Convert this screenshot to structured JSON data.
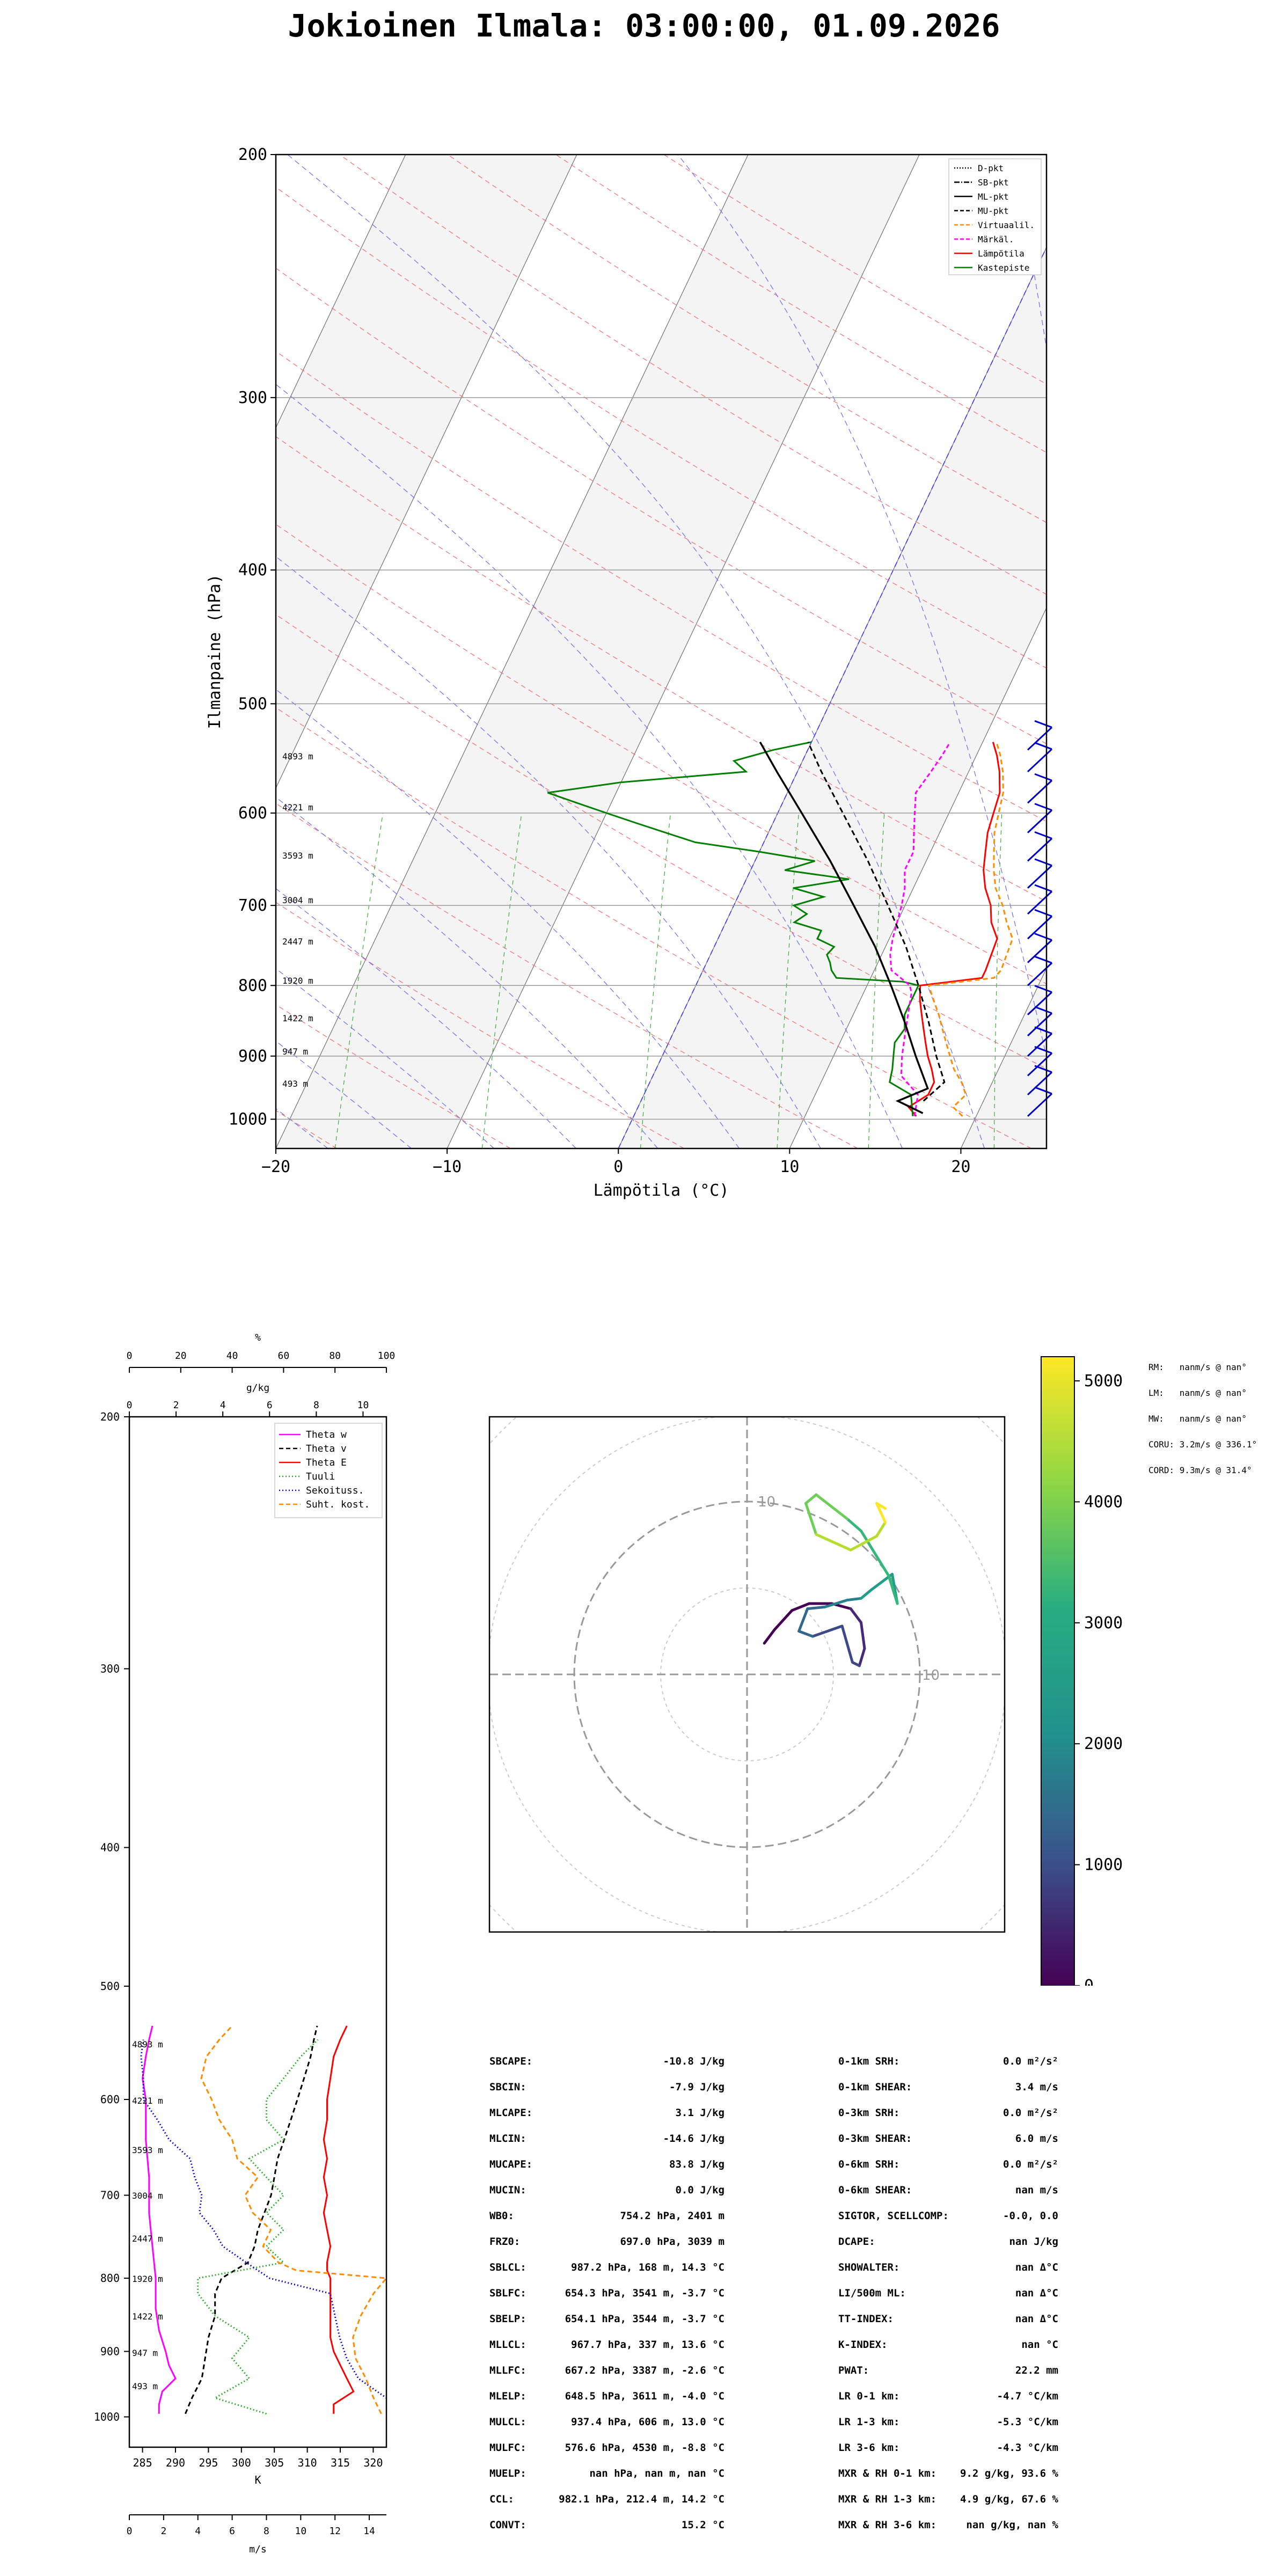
{
  "title": "Jokioinen Ilmala: 03:00:00, 01.09.2026",
  "skewt": {
    "ylabel": "Ilmanpaine (hPa)",
    "xlabel": "Lämpötila (°C)",
    "pressure_ticks": [
      "200",
      "300",
      "400",
      "500",
      "600",
      "700",
      "800",
      "900",
      "1000"
    ],
    "temp_ticks": [
      "−20",
      "−10",
      "0",
      "10",
      "20"
    ],
    "height_labels": [
      "4893 m",
      "4221 m",
      "3593 m",
      "3004 m",
      "2447 m",
      "1920 m",
      "1422 m",
      "947 m",
      "493 m"
    ],
    "legend": [
      "D-pkt",
      "SB-pkt",
      "ML-pkt",
      "MU-pkt",
      "Virtuaalil.",
      "Märkäl.",
      "Lämpötila",
      "Kastepiste"
    ],
    "colors": {
      "temperature": "#ff0000",
      "dewpoint": "#008000",
      "wetbulb": "#ff00ff",
      "virtual": "#ff8c00",
      "barbs": "#0000cd"
    }
  },
  "profile": {
    "top_label": "%",
    "top_ticks": [
      "0",
      "20",
      "40",
      "60",
      "80",
      "100"
    ],
    "mid_label": "g/kg",
    "mid_ticks": [
      "0",
      "2",
      "4",
      "6",
      "8",
      "10"
    ],
    "pressure_ticks": [
      "200",
      "300",
      "400",
      "500",
      "600",
      "700",
      "800",
      "900",
      "1000"
    ],
    "height_labels": [
      "4893 m",
      "4221 m",
      "3593 m",
      "3004 m",
      "2447 m",
      "1920 m",
      "1422 m",
      "947 m",
      "493 m"
    ],
    "k_label": "K",
    "k_ticks": [
      "285",
      "290",
      "295",
      "300",
      "305",
      "310",
      "315",
      "320"
    ],
    "ms_label": "m/s",
    "ms_ticks": [
      "0",
      "2",
      "4",
      "6",
      "8",
      "10",
      "12",
      "14"
    ],
    "legend": [
      "Theta w",
      "Theta v",
      "Theta E",
      "Tuuli",
      "Sekoituss.",
      "Suht. kost."
    ]
  },
  "hodograph": {
    "ring_labels": [
      "10",
      "10"
    ],
    "colorbar_ticks": [
      "5000",
      "4000",
      "3000",
      "2000",
      "1000",
      "0"
    ],
    "motion": [
      "RM:   nanm/s @ nan°",
      "LM:   nanm/s @ nan°",
      "MW:   nanm/s @ nan°",
      "CORU: 3.2m/s @ 336.1°",
      "CORD: 9.3m/s @ 31.4°"
    ]
  },
  "indices_left": [
    [
      "SBCAPE:",
      "-10.8 J/kg"
    ],
    [
      "SBCIN:",
      "-7.9 J/kg"
    ],
    [
      "MLCAPE:",
      "3.1 J/kg"
    ],
    [
      "MLCIN:",
      "-14.6 J/kg"
    ],
    [
      "MUCAPE:",
      "83.8 J/kg"
    ],
    [
      "MUCIN:",
      "0.0 J/kg"
    ],
    [
      "WB0:",
      "754.2 hPa, 2401 m"
    ],
    [
      "FRZ0:",
      "697.0 hPa, 3039 m"
    ],
    [
      "SBLCL:",
      "987.2 hPa, 168 m, 14.3 °C"
    ],
    [
      "SBLFC:",
      "654.3 hPa, 3541 m, -3.7 °C"
    ],
    [
      "SBELP:",
      "654.1 hPa, 3544 m, -3.7 °C"
    ],
    [
      "MLLCL:",
      "967.7 hPa, 337 m, 13.6 °C"
    ],
    [
      "MLLFC:",
      "667.2 hPa, 3387 m, -2.6 °C"
    ],
    [
      "MLELP:",
      "648.5 hPa, 3611 m, -4.0 °C"
    ],
    [
      "MULCL:",
      "937.4 hPa, 606 m, 13.0 °C"
    ],
    [
      "MULFC:",
      "576.6 hPa, 4530 m, -8.8 °C"
    ],
    [
      "MUELP:",
      "nan hPa, nan m, nan °C"
    ],
    [
      "CCL:",
      "982.1 hPa, 212.4 m, 14.2 °C"
    ],
    [
      "CONVT:",
      "15.2 °C"
    ]
  ],
  "indices_right": [
    [
      "0-1km SRH:",
      "0.0 m²/s²"
    ],
    [
      "0-1km SHEAR:",
      "3.4 m/s"
    ],
    [
      "0-3km SRH:",
      "0.0 m²/s²"
    ],
    [
      "0-3km SHEAR:",
      "6.0 m/s"
    ],
    [
      "0-6km SRH:",
      "0.0 m²/s²"
    ],
    [
      "0-6km SHEAR:",
      "nan m/s"
    ],
    [
      "SIGTOR, SCELLCOMP:",
      "-0.0, 0.0"
    ],
    [
      "DCAPE:",
      "nan J/kg"
    ],
    [
      "SHOWALTER:",
      "nan Δ°C"
    ],
    [
      "LI/500m ML:",
      "nan Δ°C"
    ],
    [
      "TT-INDEX:",
      "nan Δ°C"
    ],
    [
      "K-INDEX:",
      "nan °C"
    ],
    [
      "PWAT:",
      "22.2 mm"
    ],
    [
      "LR 0-1 km:",
      "-4.7 °C/km"
    ],
    [
      "LR 1-3 km:",
      "-5.3 °C/km"
    ],
    [
      "LR 3-6 km:",
      "-4.3 °C/km"
    ],
    [
      "MXR & RH 0-1 km:",
      "9.2 g/kg, 93.6 %"
    ],
    [
      "MXR & RH 1-3 km:",
      "4.9 g/kg, 67.6 %"
    ],
    [
      "MXR & RH 3-6 km:",
      "nan g/kg, nan %"
    ]
  ],
  "chart_data": [
    {
      "type": "line",
      "title": "Jokioinen Ilmala: 03:00:00, 01.09.2026",
      "xlabel": "Lämpötila (°C)",
      "ylabel": "Ilmanpaine (hPa)",
      "xlim": [
        -20,
        25
      ],
      "ylim": [
        1050,
        200
      ],
      "yscale": "log",
      "series": [
        {
          "name": "Lämpötila",
          "p": [
            995,
            980,
            960,
            940,
            920,
            900,
            880,
            860,
            840,
            820,
            800,
            790,
            780,
            760,
            740,
            720,
            700,
            680,
            660,
            640,
            620,
            600,
            580,
            560,
            545,
            533
          ],
          "t": [
            16.5,
            15.8,
            16.6,
            16.6,
            16.1,
            15.5,
            15.0,
            14.5,
            14.0,
            13.5,
            13.1,
            16.5,
            16.5,
            16.4,
            16.3,
            15.5,
            15.0,
            14.2,
            13.6,
            13.2,
            12.8,
            12.6,
            12.4,
            11.8,
            11.2,
            10.6
          ]
        },
        {
          "name": "Kastepiste",
          "p": [
            995,
            980,
            960,
            940,
            920,
            900,
            880,
            860,
            840,
            820,
            800,
            795,
            790,
            780,
            770,
            760,
            750,
            740,
            730,
            720,
            710,
            700,
            690,
            680,
            670,
            660,
            650,
            640,
            630,
            620,
            610,
            600,
            590,
            580,
            570,
            560,
            550,
            540,
            533
          ],
          "t": [
            16.3,
            16.0,
            15.6,
            14.0,
            13.8,
            13.5,
            13.2,
            13.4,
            13.0,
            13.0,
            13.0,
            12.0,
            8.0,
            7.5,
            7.2,
            6.8,
            7.0,
            5.8,
            5.8,
            4.0,
            4.5,
            3.5,
            5.0,
            3.0,
            6.0,
            2.0,
            3.5,
            0.0,
            -4.0,
            -6.0,
            -8.0,
            -10.0,
            -12.0,
            -14.0,
            -10.0,
            -3.0,
            -4.0,
            -2.0,
            0.0
          ]
        },
        {
          "name": "Märkäl.",
          "p": [
            995,
            960,
            930,
            900,
            870,
            840,
            810,
            800,
            780,
            760,
            740,
            720,
            700,
            680,
            660,
            640,
            620,
            600,
            580,
            560,
            545,
            533
          ],
          "t": [
            16.4,
            16.0,
            14.5,
            14.0,
            13.6,
            13.2,
            12.8,
            12.5,
            11.0,
            10.5,
            10.2,
            10.0,
            9.8,
            9.5,
            9.0,
            9.0,
            8.5,
            8.0,
            7.5,
            7.8,
            8.0,
            8.1
          ]
        },
        {
          "name": "Virtuaalil.",
          "p": [
            995,
            980,
            960,
            940,
            920,
            900,
            880,
            860,
            840,
            820,
            800,
            790,
            780,
            760,
            740,
            720,
            700,
            680,
            660,
            640,
            620,
            600,
            580,
            560,
            545,
            533
          ],
          "t": [
            19.2,
            18.4,
            18.8,
            18.2,
            17.4,
            16.8,
            16.2,
            15.6,
            15.0,
            14.3,
            13.6,
            17.2,
            17.4,
            17.3,
            17.2,
            16.4,
            15.7,
            14.8,
            14.2,
            13.7,
            13.2,
            12.9,
            12.6,
            12.0,
            11.4,
            10.8
          ]
        },
        {
          "name": "ML-pkt",
          "p": [
            990,
            970,
            950,
            900,
            850,
            800,
            750,
            700,
            650,
            600,
            560,
            533
          ],
          "t": [
            16.8,
            15.0,
            16.4,
            14.8,
            13.2,
            11.4,
            9.4,
            7.0,
            4.4,
            1.4,
            -1.2,
            -3.0
          ]
        },
        {
          "name": "MU-pkt",
          "p": [
            970,
            940,
            900,
            850,
            800,
            750,
            700,
            650,
            600,
            560,
            533
          ],
          "t": [
            16.5,
            17.2,
            16.0,
            14.6,
            13.0,
            11.2,
            9.0,
            6.6,
            3.8,
            1.4,
            -0.2
          ]
        }
      ],
      "wind_barbs": [
        {
          "p": 995,
          "speed_kt": 5
        },
        {
          "p": 960,
          "speed_kt": 5
        },
        {
          "p": 930,
          "speed_kt": 10
        },
        {
          "p": 900,
          "speed_kt": 10
        },
        {
          "p": 870,
          "speed_kt": 10
        },
        {
          "p": 840,
          "speed_kt": 10
        },
        {
          "p": 800,
          "speed_kt": 10
        },
        {
          "p": 770,
          "speed_kt": 10
        },
        {
          "p": 740,
          "speed_kt": 10
        },
        {
          "p": 710,
          "speed_kt": 10
        },
        {
          "p": 680,
          "speed_kt": 10
        },
        {
          "p": 650,
          "speed_kt": 10
        },
        {
          "p": 620,
          "speed_kt": 10
        },
        {
          "p": 590,
          "speed_kt": 10
        },
        {
          "p": 560,
          "speed_kt": 10
        },
        {
          "p": 540,
          "speed_kt": 10
        }
      ]
    },
    {
      "type": "line",
      "xlabel": "K",
      "ylim": [
        1050,
        200
      ],
      "yscale": "log",
      "xlim_K": [
        283,
        322
      ],
      "xlim_ms": [
        0,
        15
      ],
      "xlim_gkg": [
        0,
        11
      ],
      "xlim_pct": [
        0,
        100
      ],
      "series": [
        {
          "name": "Theta w",
          "unit": "K",
          "p": [
            995,
            980,
            960,
            940,
            920,
            900,
            870,
            840,
            800,
            760,
            720,
            680,
            640,
            600,
            580,
            560,
            545,
            533
          ],
          "x": [
            287.5,
            287.5,
            288,
            290,
            289,
            288.5,
            287.5,
            287,
            287,
            286.5,
            286,
            286,
            285.5,
            285.5,
            285,
            285.5,
            286,
            286.5
          ]
        },
        {
          "name": "Theta v",
          "unit": "K",
          "p": [
            995,
            970,
            940,
            910,
            880,
            850,
            820,
            800,
            780,
            760,
            740,
            720,
            700,
            680,
            660,
            640,
            620,
            600,
            580,
            560,
            545,
            533
          ],
          "x": [
            291.5,
            292.5,
            294,
            294.5,
            295,
            296,
            296,
            297,
            301,
            302,
            302.5,
            303.5,
            304.5,
            305,
            305.5,
            306.5,
            307.5,
            308.5,
            309.5,
            310.5,
            311,
            311.5
          ]
        },
        {
          "name": "Theta E",
          "unit": "K",
          "p": [
            995,
            980,
            960,
            940,
            920,
            900,
            880,
            860,
            840,
            820,
            800,
            790,
            780,
            760,
            740,
            720,
            700,
            680,
            660,
            640,
            620,
            600,
            580,
            560,
            545,
            533
          ],
          "x": [
            314,
            314,
            317,
            316,
            315,
            314,
            313.5,
            313.5,
            313.5,
            313.5,
            313.5,
            313,
            313,
            313.5,
            313,
            312.5,
            313,
            312.5,
            313,
            312.5,
            313,
            313,
            313.5,
            314,
            315,
            316
          ]
        },
        {
          "name": "Tuuli",
          "unit": "m/s",
          "p": [
            995,
            970,
            940,
            910,
            880,
            850,
            820,
            800,
            780,
            760,
            740,
            720,
            700,
            680,
            660,
            640,
            620,
            600,
            580,
            560,
            545
          ],
          "x": [
            8,
            5,
            7,
            6,
            7,
            5,
            4,
            4,
            9,
            8,
            9,
            8,
            9,
            8,
            7,
            9,
            8,
            8,
            9,
            10,
            11
          ]
        },
        {
          "name": "Sekoituss.",
          "unit": "g/kg",
          "p": [
            995,
            970,
            940,
            910,
            880,
            850,
            820,
            800,
            780,
            760,
            740,
            720,
            700,
            680,
            660,
            640,
            620,
            600,
            580,
            560,
            545
          ],
          "x": [
            11.5,
            11.0,
            9.8,
            9.3,
            9.0,
            8.8,
            8.6,
            6.0,
            5.0,
            4.0,
            3.6,
            3.0,
            3.1,
            2.8,
            2.6,
            1.7,
            1.2,
            0.6,
            0.6,
            0.5,
            0.6
          ]
        },
        {
          "name": "Suht. kost.",
          "unit": "%",
          "p": [
            995,
            970,
            940,
            910,
            880,
            850,
            820,
            800,
            790,
            780,
            760,
            740,
            720,
            700,
            680,
            660,
            640,
            620,
            600,
            580,
            560,
            545,
            533
          ],
          "x": [
            98,
            95,
            92,
            88,
            87,
            90,
            95,
            100,
            65,
            58,
            52,
            55,
            48,
            45,
            50,
            42,
            40,
            35,
            32,
            28,
            30,
            35,
            40
          ]
        }
      ]
    },
    {
      "type": "line",
      "title": "",
      "xlabel": "",
      "ylabel": "",
      "xlim": [
        -15,
        15
      ],
      "ylim": [
        -15,
        15
      ],
      "series": [
        {
          "name": "",
          "u": [
            1.0,
            1.6,
            2.6,
            3.6,
            4.9,
            6.0,
            6.6,
            6.8,
            6.5,
            6.1,
            5.5,
            3.8,
            3.0,
            3.5,
            4.5,
            5.8,
            6.6,
            7.2,
            8.4,
            8.7,
            8.2,
            6.6,
            5.8,
            4.0,
            3.4,
            4.0,
            6.0,
            7.5,
            8.0,
            7.5,
            8.0
          ],
          "v": [
            1.8,
            2.6,
            3.7,
            4.1,
            4.1,
            3.8,
            3.0,
            1.5,
            0.5,
            0.7,
            2.8,
            2.2,
            2.5,
            3.8,
            3.9,
            4.3,
            4.4,
            4.9,
            5.8,
            4.1,
            5.7,
            8.3,
            9.0,
            10.4,
            9.9,
            8.1,
            7.2,
            8.0,
            8.8,
            9.9,
            9.6
          ],
          "height_m": [
            0,
            100,
            200,
            300,
            450,
            600,
            750,
            900,
            1050,
            1200,
            1400,
            1600,
            1800,
            2000,
            2200,
            2400,
            2600,
            2800,
            3000,
            3200,
            3400,
            3600,
            3800,
            4000,
            4150,
            4300,
            4450,
            4600,
            4750,
            4850,
            4893
          ]
        }
      ],
      "colorbar_range": [
        0,
        5200
      ]
    }
  ]
}
